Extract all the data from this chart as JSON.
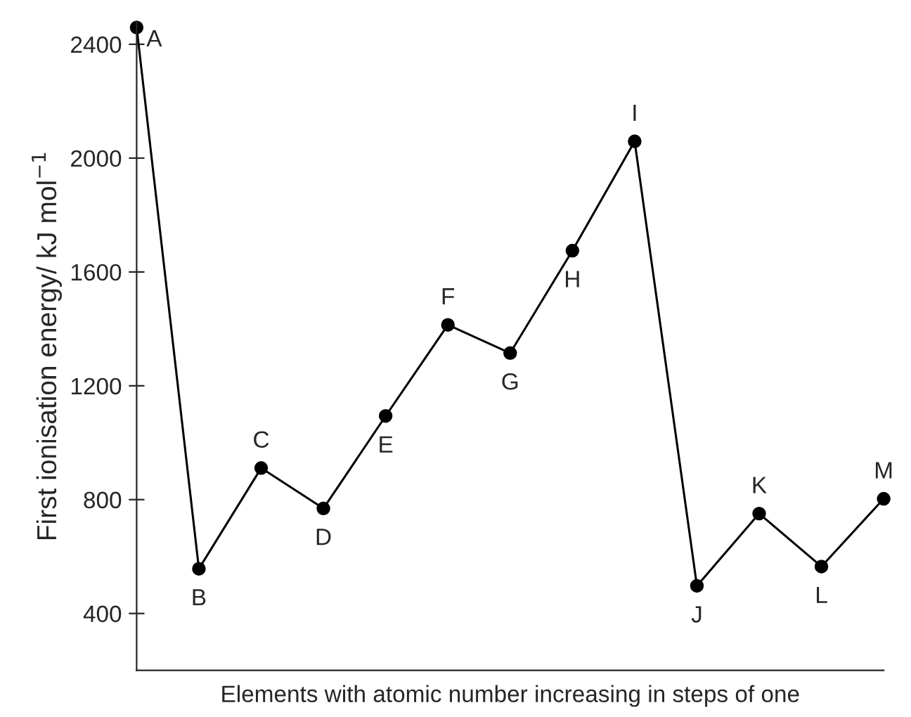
{
  "chart_data": {
    "type": "line",
    "xlabel": "Elements with atomic number increasing in steps of one",
    "ylabel": "First ionisation energy/ kJ mol$^{−1}$",
    "categories": [
      null,
      null,
      null,
      null,
      null,
      null,
      null,
      null,
      null,
      null,
      null,
      null,
      null
    ],
    "series": [
      {
        "color": "#000000",
        "values": [
          2459,
          557,
          911,
          769,
          1094,
          1414,
          1315,
          1675,
          2059,
          497,
          751,
          565,
          803
        ],
        "value_labels": [
          "A",
          "B",
          "C",
          "D",
          "E",
          "F",
          "G",
          "H",
          "I",
          "J",
          "K",
          "L",
          "M"
        ]
      }
    ],
    "ylim": [
      200,
      2480
    ],
    "yticks": [
      400,
      800,
      1200,
      1600,
      2000,
      2400
    ],
    "marker": "circle",
    "line_style": "solid",
    "grid": false,
    "legend": false
  }
}
